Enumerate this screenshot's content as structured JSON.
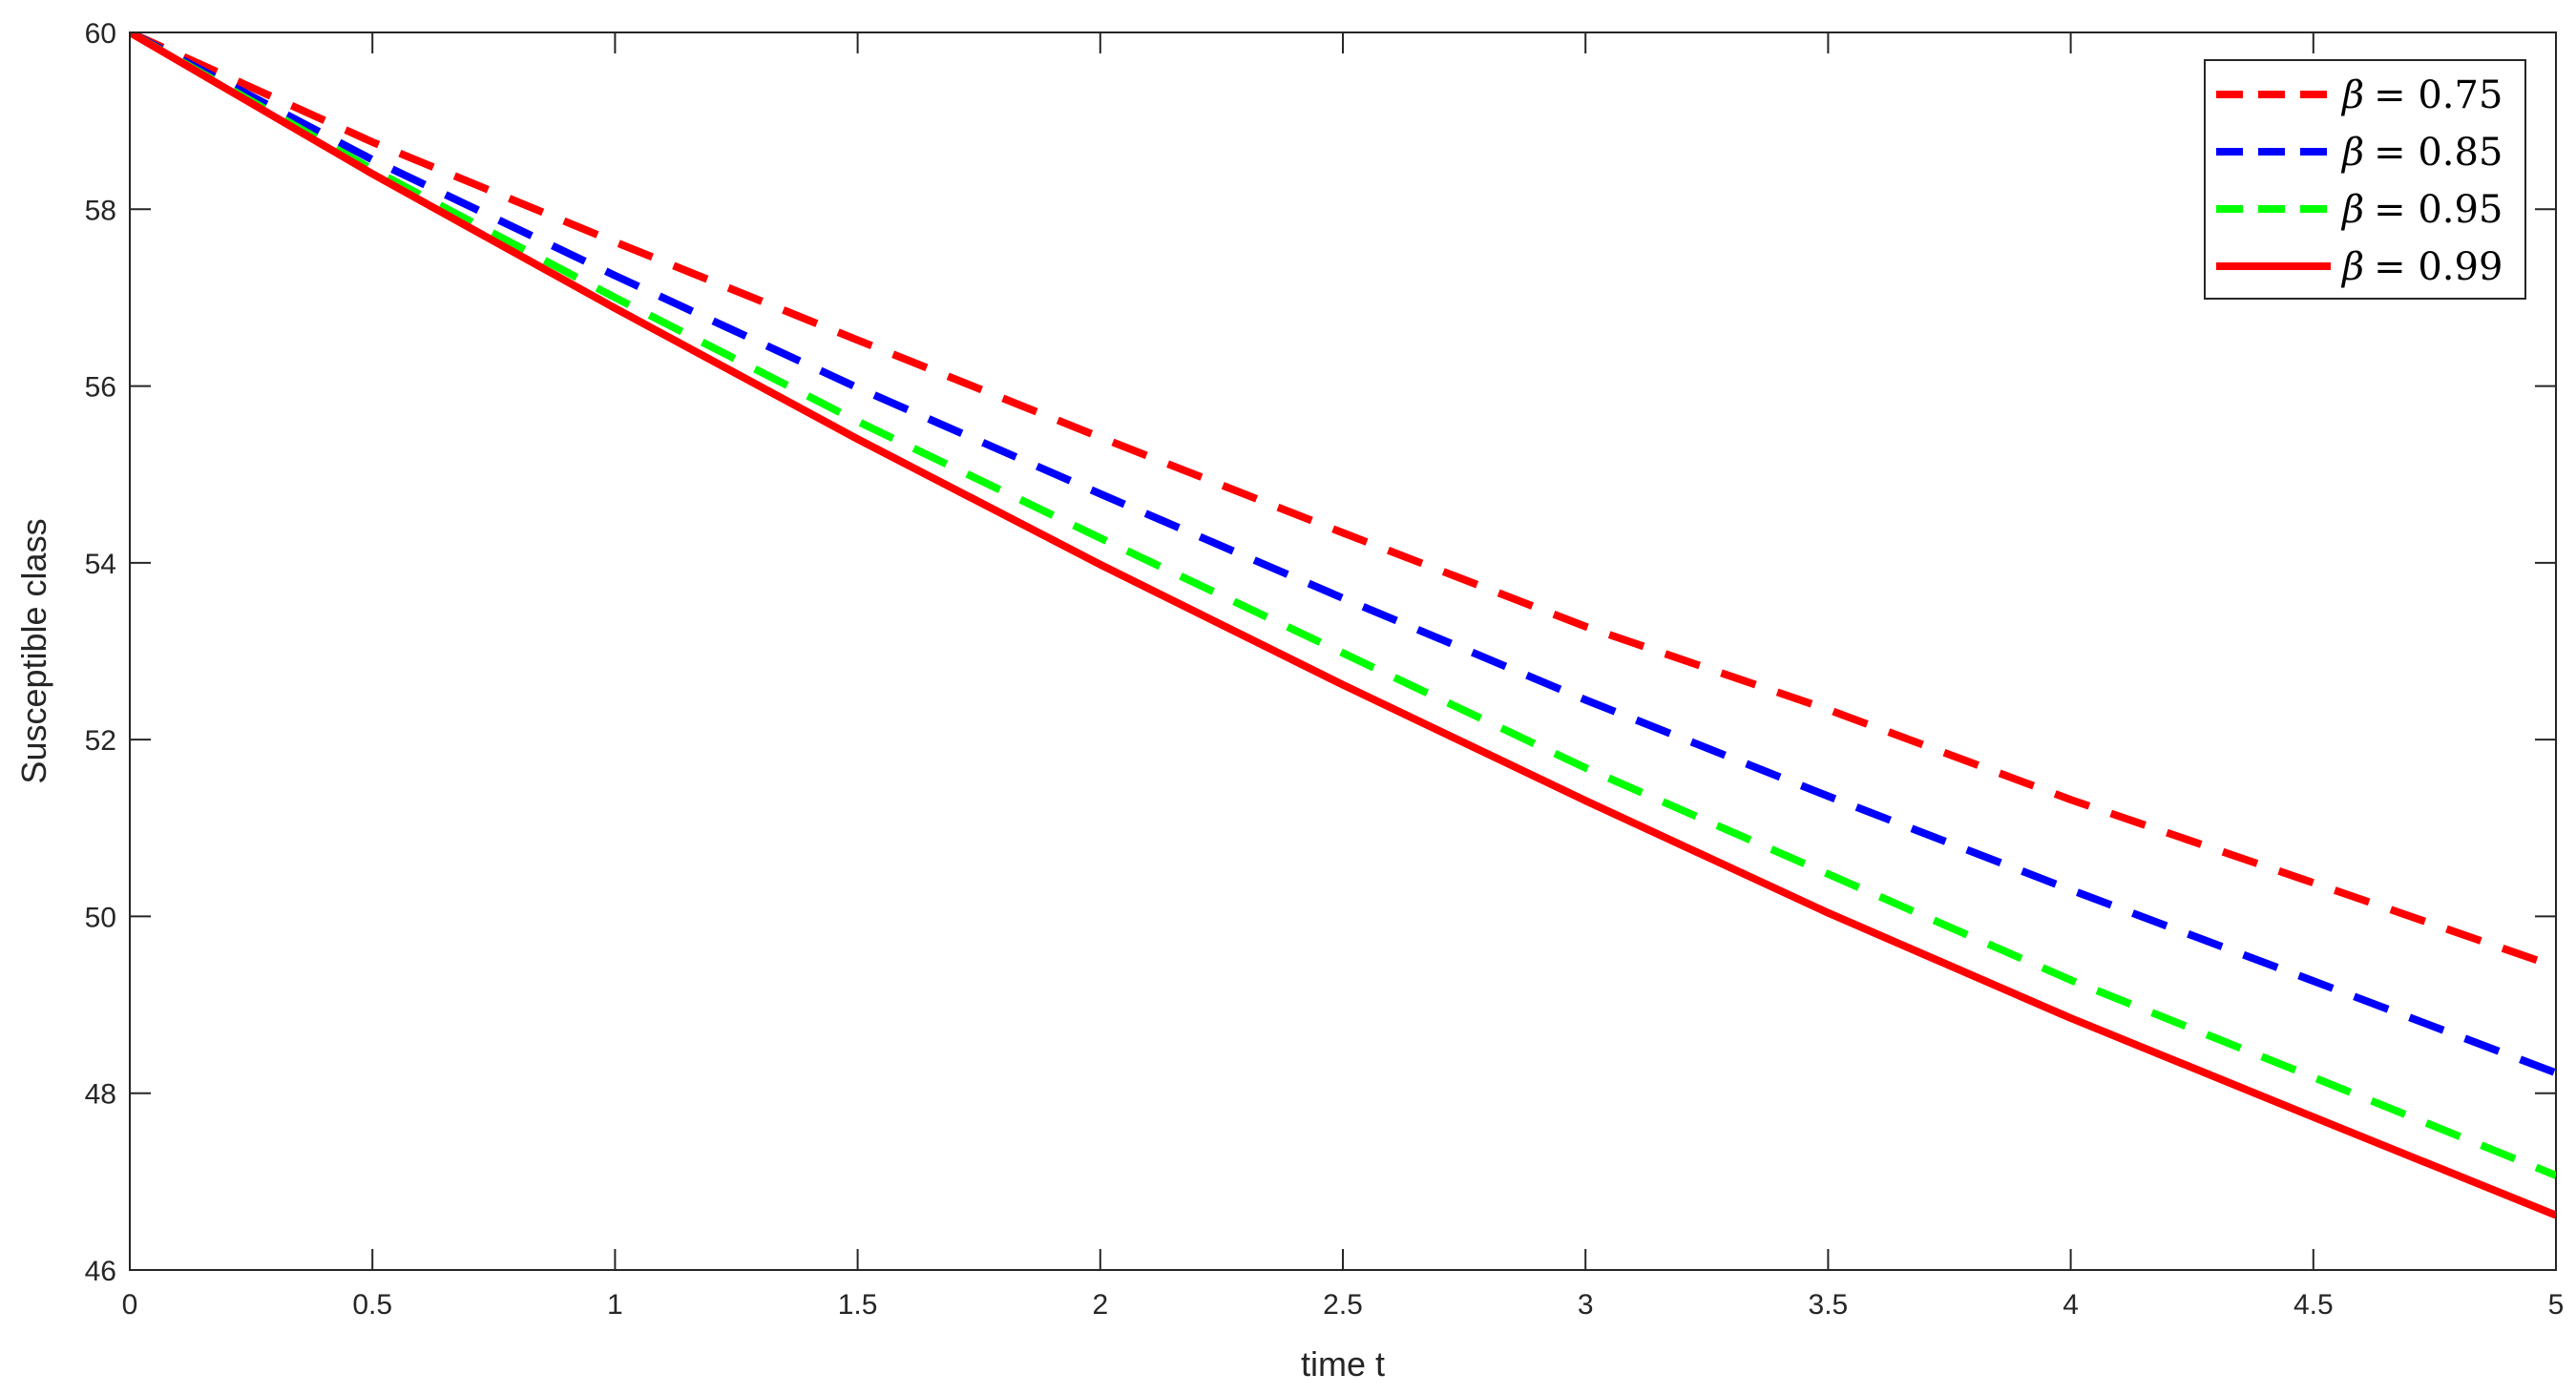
{
  "chart_data": {
    "type": "line",
    "title": "",
    "xlabel": "time t",
    "ylabel": "Susceptible class",
    "xlim": [
      0,
      5
    ],
    "ylim": [
      46,
      60
    ],
    "xticks": [
      0,
      0.5,
      1,
      1.5,
      2,
      2.5,
      3,
      3.5,
      4,
      4.5,
      5
    ],
    "xtick_labels": [
      "0",
      "0.5",
      "1",
      "1.5",
      "2",
      "2.5",
      "3",
      "3.5",
      "4",
      "4.5",
      "5"
    ],
    "yticks": [
      46,
      48,
      50,
      52,
      54,
      56,
      58,
      60
    ],
    "ytick_labels": [
      "46",
      "48",
      "50",
      "52",
      "54",
      "56",
      "58",
      "60"
    ],
    "grid": false,
    "legend_position": "top-right",
    "x": [
      0,
      0.5,
      1,
      1.5,
      2,
      2.5,
      3,
      3.5,
      4,
      4.5,
      5
    ],
    "series": [
      {
        "name": "β = 0.75",
        "legend_symbol": "β",
        "legend_value": "= 0.75",
        "color": "#ff0000",
        "style": "dashed",
        "values": [
          60,
          58.76,
          57.63,
          56.52,
          55.42,
          54.34,
          53.28,
          52.34,
          51.32,
          50.38,
          49.43
        ]
      },
      {
        "name": "β = 0.85",
        "legend_symbol": "β",
        "legend_value": "= 0.85",
        "color": "#0000ff",
        "style": "dashed",
        "values": [
          60,
          58.56,
          57.25,
          55.98,
          54.78,
          53.6,
          52.45,
          51.36,
          50.3,
          49.27,
          48.23
        ]
      },
      {
        "name": "β = 0.95",
        "legend_symbol": "β",
        "legend_value": "= 0.95",
        "color": "#00ff00",
        "style": "dashed",
        "values": [
          60,
          58.45,
          57.0,
          55.6,
          54.28,
          52.98,
          51.68,
          50.48,
          49.28,
          48.18,
          47.07
        ]
      },
      {
        "name": "β = 0.99",
        "legend_symbol": "β",
        "legend_value": "= 0.99",
        "color": "#ff0000",
        "style": "solid",
        "values": [
          60,
          58.4,
          56.88,
          55.4,
          53.98,
          52.62,
          51.31,
          50.04,
          48.85,
          47.73,
          46.62
        ]
      }
    ]
  }
}
